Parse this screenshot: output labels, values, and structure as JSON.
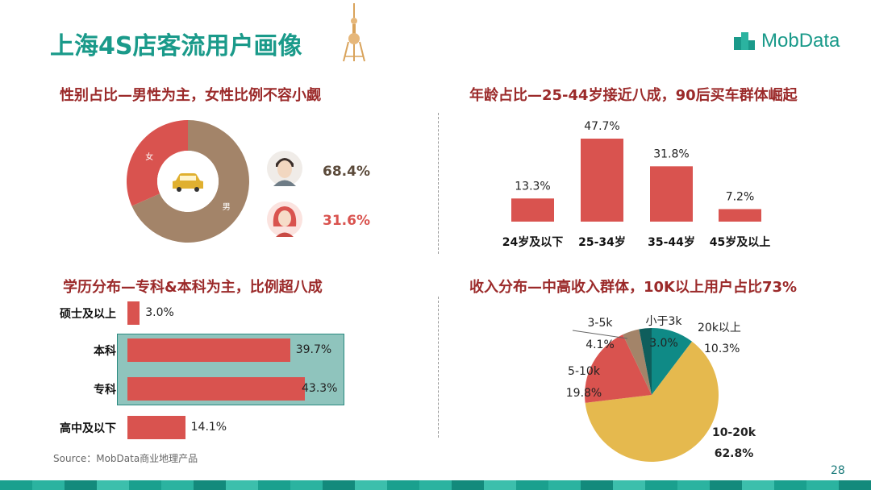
{
  "title": "上海4S店客流用户画像",
  "brand": "MobData",
  "source": "Source：MobData商业地理产品",
  "page_number": "28",
  "colors": {
    "teal": "#1a9a8a",
    "red": "#d9534f",
    "brown": "#a38469",
    "gold": "#e5b94e",
    "dark_teal": "#0f6e6e",
    "title_red": "#9b2a2a"
  },
  "icons": {
    "tower": "oriental-pearl-tower-icon",
    "logo": "mobdata-logo-icon",
    "car": "car-icon",
    "male": "male-avatar-icon",
    "female": "female-avatar-icon"
  },
  "chart_data": [
    {
      "type": "pie",
      "title": "性别占比—男性为主，女性比例不容小觑",
      "donut": true,
      "categories": [
        "男",
        "女"
      ],
      "values": [
        68.4,
        31.6
      ],
      "labels": [
        "68.4%",
        "31.6%"
      ],
      "colors": [
        "#a38469",
        "#d9534f"
      ]
    },
    {
      "type": "bar",
      "title": "年龄占比—25-44岁接近八成，90后买车群体崛起",
      "categories": [
        "24岁及以下",
        "25-34岁",
        "35-44岁",
        "45岁及以上"
      ],
      "values": [
        13.3,
        47.7,
        31.8,
        7.2
      ],
      "labels": [
        "13.3%",
        "47.7%",
        "31.8%",
        "7.2%"
      ],
      "ylim": [
        0,
        47.7
      ],
      "color": "#d9534f"
    },
    {
      "type": "bar",
      "orientation": "horizontal",
      "title": "学历分布—专科&本科为主，比例超八成",
      "categories": [
        "硕士及以上",
        "本科",
        "专科",
        "高中及以下"
      ],
      "values": [
        3.0,
        39.7,
        43.3,
        14.1
      ],
      "labels": [
        "3.0%",
        "39.7%",
        "43.3%",
        "14.1%"
      ],
      "highlighted": [
        "本科",
        "专科"
      ],
      "color": "#d9534f"
    },
    {
      "type": "pie",
      "title": "收入分布—中高收入群体，10K以上用户占比73%",
      "categories": [
        "20k以上",
        "10-20k",
        "5-10k",
        "3-5k",
        "小于3k"
      ],
      "values": [
        10.3,
        62.8,
        19.8,
        4.1,
        3.0
      ],
      "labels": [
        "10.3%",
        "62.8%",
        "19.8%",
        "4.1%",
        "3.0%"
      ],
      "colors": [
        "#0f8a86",
        "#e5b94e",
        "#d9534f",
        "#a38469",
        "#0f5e5c"
      ]
    }
  ]
}
